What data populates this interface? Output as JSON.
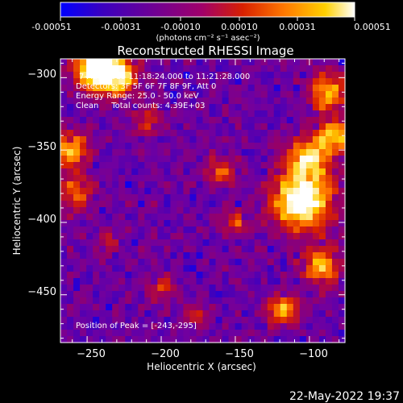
{
  "colorbar": {
    "ticks": [
      "-0.00051",
      "-0.00031",
      "-0.00010",
      "0.00010",
      "0.00031",
      "0.00051"
    ],
    "units_line": "(photons cm⁻² s⁻¹ asec⁻²)"
  },
  "title": "Reconstructed RHESSI Image",
  "annotations": {
    "time_range": "7-Aug-2015 11:18:24.000 to 11:21:28.000",
    "detectors": "Detectors: 3F 5F 6F 7F 8F 9F, Att 0",
    "energy": "Energy Range: 25.0 - 50.0 keV",
    "clean": "Clean     Total counts: 4.39E+03",
    "peak": "Position of Peak = [-243,-295]"
  },
  "footer": {
    "timestamp": "22-May-2022 19:37"
  },
  "chart_data": {
    "type": "heatmap",
    "title": "Reconstructed RHESSI Image",
    "xlabel": "Heliocentric X (arcsec)",
    "ylabel": "Heliocentric Y (arcsec)",
    "xlim": [
      -268,
      -76
    ],
    "ylim": [
      -483,
      -287
    ],
    "x_ticks": [
      -250,
      -200,
      -150,
      -100
    ],
    "y_ticks": [
      -450,
      -400,
      -350,
      -300
    ],
    "x_tick_labels": [
      "−250",
      "−200",
      "−150",
      "−100"
    ],
    "y_tick_labels": [
      "−450",
      "−400",
      "−350",
      "−300"
    ],
    "colorbar_range": [
      -0.00051,
      0.00051
    ],
    "colormap": [
      "#0000ff",
      "#3a00c0",
      "#7000a0",
      "#a0005a",
      "#d82000",
      "#ff7800",
      "#ffd000",
      "#ffffff"
    ],
    "peak_position": [
      -243,
      -295
    ],
    "hot_regions": [
      {
        "center": [
          -243,
          -293
        ],
        "sigma": 10,
        "amp": 1.0
      },
      {
        "center": [
          -228,
          -300
        ],
        "sigma": 8,
        "amp": 0.6
      },
      {
        "center": [
          -88,
          -310
        ],
        "sigma": 9,
        "amp": 0.55
      },
      {
        "center": [
          -82,
          -340
        ],
        "sigma": 8,
        "amp": 0.6
      },
      {
        "center": [
          -262,
          -350
        ],
        "sigma": 9,
        "amp": 0.55
      },
      {
        "center": [
          -258,
          -380
        ],
        "sigma": 8,
        "amp": 0.4
      },
      {
        "center": [
          -105,
          -385
        ],
        "sigma": 14,
        "amp": 0.85
      },
      {
        "center": [
          -100,
          -355
        ],
        "sigma": 10,
        "amp": 0.6
      },
      {
        "center": [
          -92,
          -430
        ],
        "sigma": 9,
        "amp": 0.55
      },
      {
        "center": [
          -118,
          -460
        ],
        "sigma": 8,
        "amp": 0.5
      },
      {
        "center": [
          -160,
          -365
        ],
        "sigma": 7,
        "amp": 0.35
      },
      {
        "center": [
          -210,
          -330
        ],
        "sigma": 7,
        "amp": 0.3
      },
      {
        "center": [
          -150,
          -400
        ],
        "sigma": 6,
        "amp": 0.35
      },
      {
        "center": [
          -200,
          -445
        ],
        "sigma": 6,
        "amp": 0.3
      },
      {
        "center": [
          -235,
          -415
        ],
        "sigma": 5,
        "amp": 0.25
      },
      {
        "center": [
          -175,
          -465
        ],
        "sigma": 5,
        "amp": 0.3
      }
    ]
  }
}
